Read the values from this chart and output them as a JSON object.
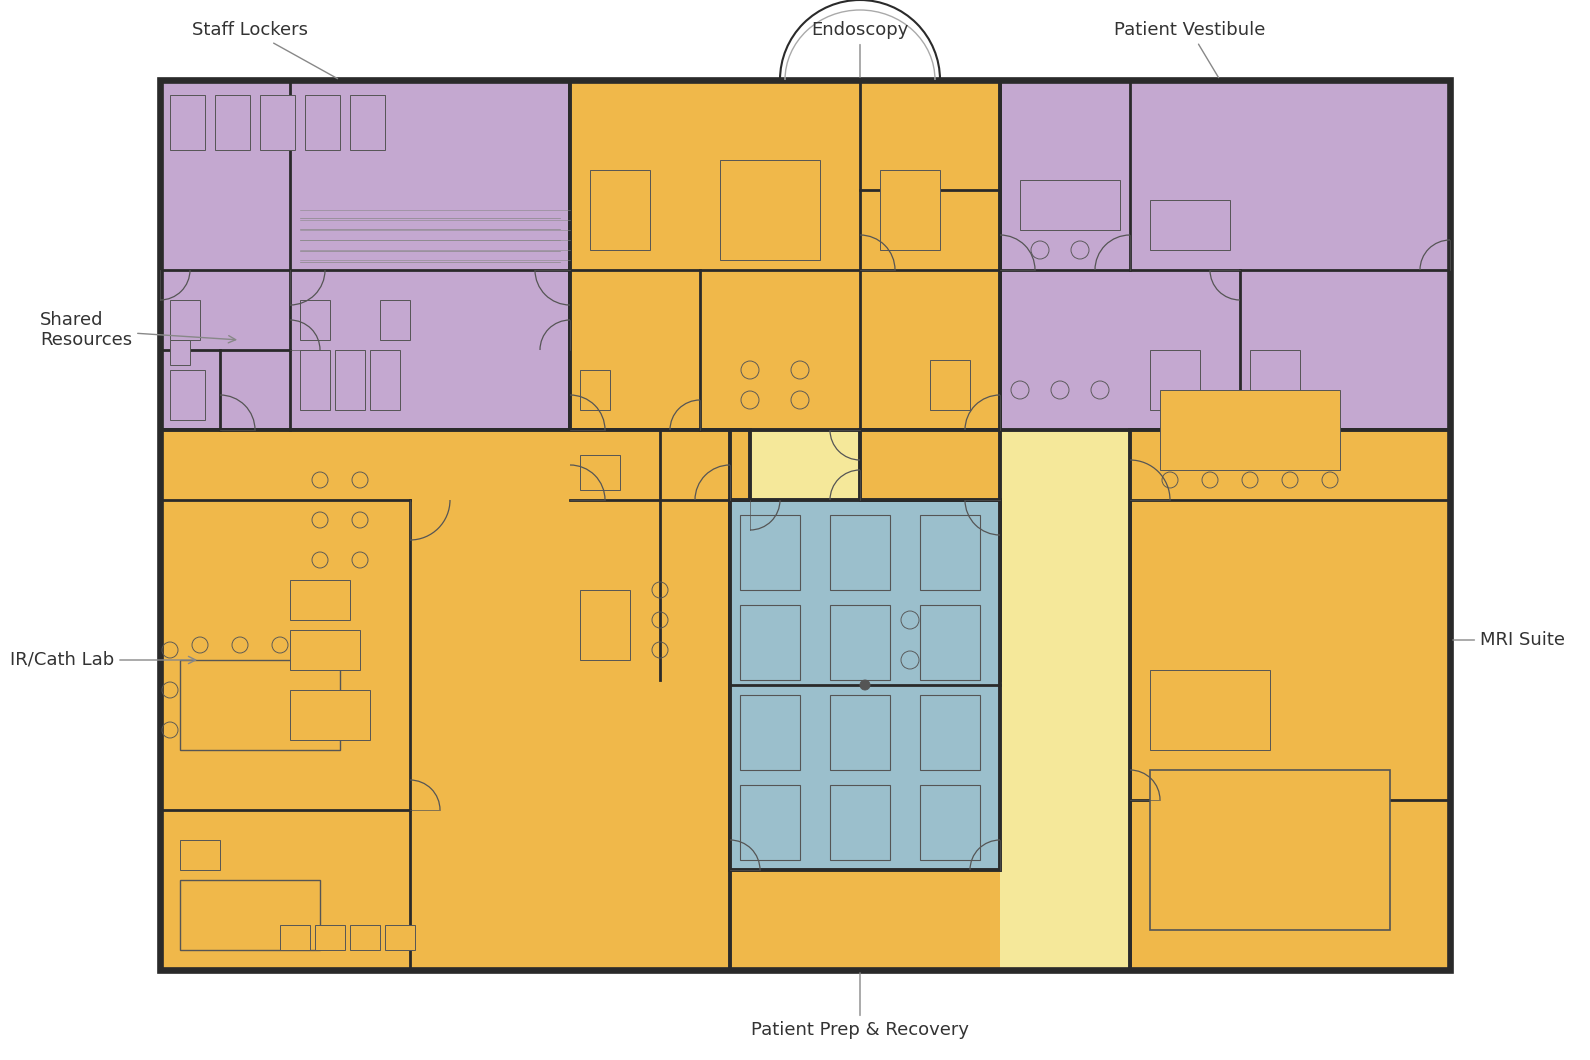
{
  "bg_color": "#ffffff",
  "wall_color": "#2a2a2a",
  "wall_lw": 2.8,
  "colors": {
    "purple": "#c4a8d0",
    "orange": "#f0b84a",
    "yellow": "#f5e89a",
    "blue": "#9bbfcc",
    "white": "#ffffff"
  },
  "labels": {
    "staff_lockers": "Staff Lockers",
    "endoscopy": "Endoscopy",
    "patient_vestibule": "Patient Vestibule",
    "shared_resources": "Shared\nResources",
    "ir_cath_lab": "IR/Cath Lab",
    "patient_prep": "Patient Prep & Recovery",
    "mri_suite": "MRI Suite"
  },
  "label_fontsize": 13,
  "label_color": "#333333",
  "furniture_ec": "#555555",
  "door_color": "#555555"
}
